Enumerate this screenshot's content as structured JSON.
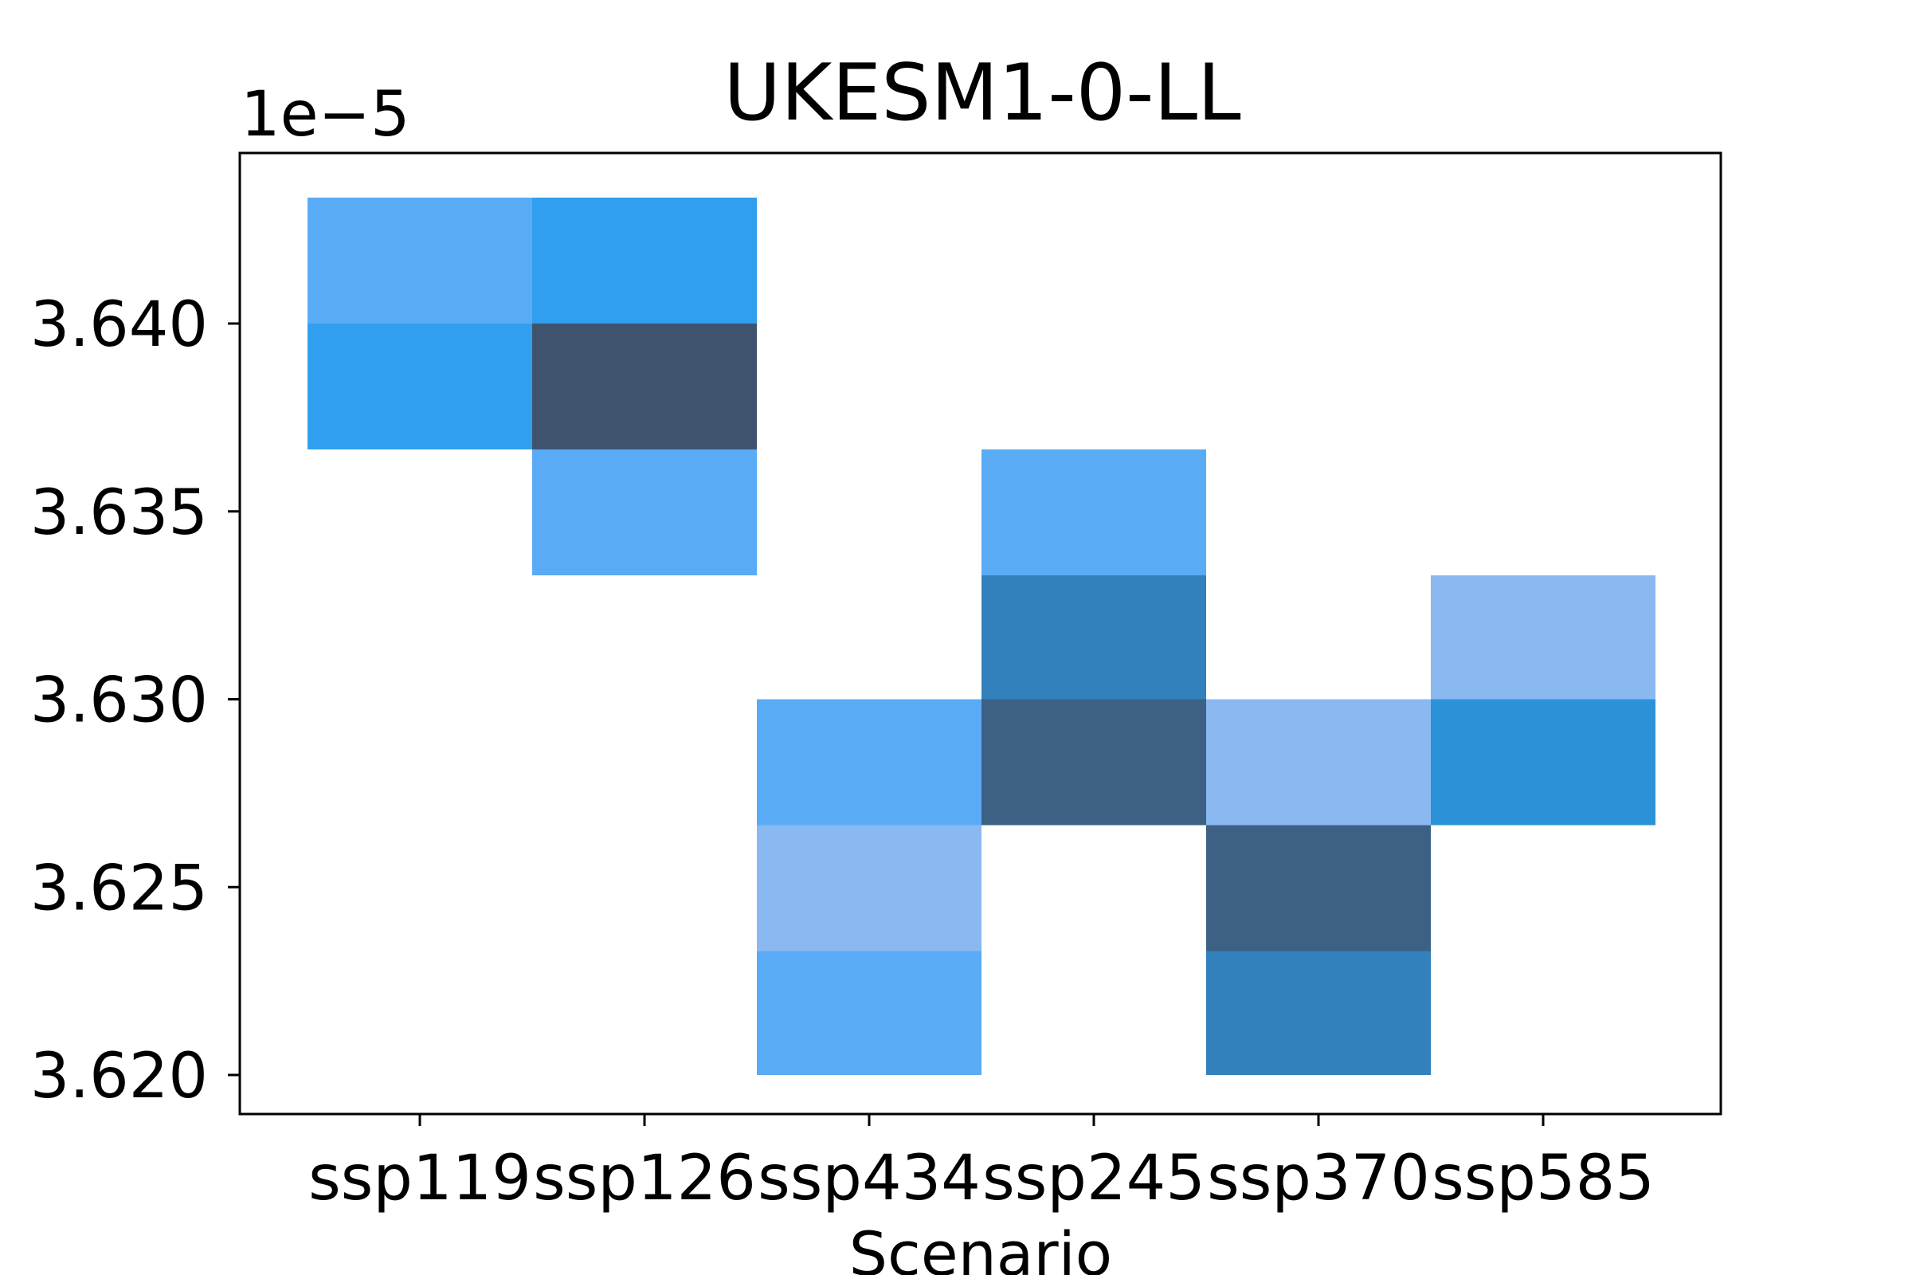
{
  "chart_data": {
    "type": "heatmap",
    "title": "UKESM1-0-LL",
    "xlabel": "Scenario",
    "ylabel": "",
    "y_offset_label": "1e−5",
    "categories": [
      "ssp119",
      "ssp126",
      "ssp434",
      "ssp245",
      "ssp370",
      "ssp585"
    ],
    "y_tick_labels": [
      "3.620",
      "3.625",
      "3.630",
      "3.635",
      "3.640"
    ],
    "y_ticks": [
      3.62,
      3.625,
      3.63,
      3.635,
      3.64
    ],
    "ylim": [
      3.619,
      3.6447
    ],
    "grid": false,
    "legend": "none",
    "bins": [
      {
        "category": "ssp119",
        "y0": 3.64,
        "y1": 3.64335,
        "color": "#5aabf5"
      },
      {
        "category": "ssp119",
        "y0": 3.63665,
        "y1": 3.64,
        "color": "#319fef"
      },
      {
        "category": "ssp126",
        "y0": 3.64,
        "y1": 3.64335,
        "color": "#319fef"
      },
      {
        "category": "ssp126",
        "y0": 3.63665,
        "y1": 3.64,
        "color": "#3f536f"
      },
      {
        "category": "ssp126",
        "y0": 3.6333,
        "y1": 3.63665,
        "color": "#5aabf5"
      },
      {
        "category": "ssp434",
        "y0": 3.62665,
        "y1": 3.63,
        "color": "#5aabf5"
      },
      {
        "category": "ssp434",
        "y0": 3.6233,
        "y1": 3.62665,
        "color": "#8ab8f1"
      },
      {
        "category": "ssp434",
        "y0": 3.62,
        "y1": 3.6233,
        "color": "#5aabf5"
      },
      {
        "category": "ssp245",
        "y0": 3.6333,
        "y1": 3.63665,
        "color": "#5aabf5"
      },
      {
        "category": "ssp245",
        "y0": 3.63,
        "y1": 3.6333,
        "color": "#3280bc"
      },
      {
        "category": "ssp245",
        "y0": 3.62665,
        "y1": 3.63,
        "color": "#3d6185"
      },
      {
        "category": "ssp370",
        "y0": 3.62665,
        "y1": 3.63,
        "color": "#8ab8f1"
      },
      {
        "category": "ssp370",
        "y0": 3.6233,
        "y1": 3.62665,
        "color": "#3d6185"
      },
      {
        "category": "ssp370",
        "y0": 3.62,
        "y1": 3.6233,
        "color": "#3280bc"
      },
      {
        "category": "ssp585",
        "y0": 3.63,
        "y1": 3.6333,
        "color": "#8ab8f1"
      },
      {
        "category": "ssp585",
        "y0": 3.62665,
        "y1": 3.63,
        "color": "#2b92d8"
      }
    ]
  }
}
